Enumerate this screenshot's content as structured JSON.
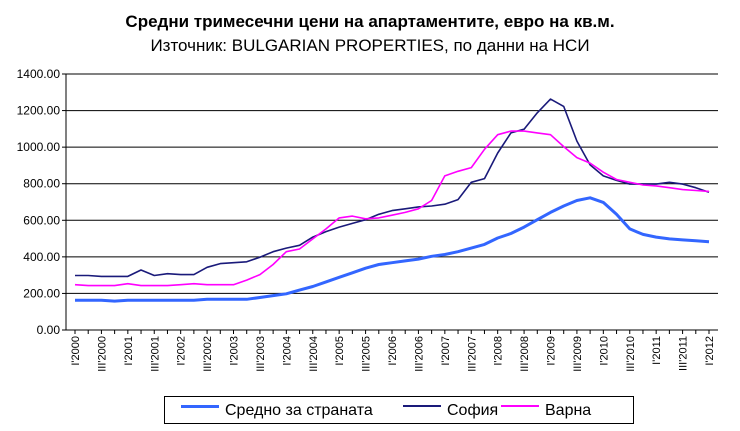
{
  "title": "Средни тримесечни цени на апартаментите, евро на кв.м.",
  "subtitle": "Източник: BULGARIAN PROPERTIES, по данни на НСИ",
  "chart_data": {
    "type": "line",
    "title": "Средни тримесечни цени на апартаментите, евро на кв.м.",
    "subtitle": "Източник: BULGARIAN PROPERTIES, по данни на НСИ",
    "ylim": [
      0,
      1400
    ],
    "yticks": [
      "0.00",
      "200.00",
      "400.00",
      "600.00",
      "800.00",
      "1000.00",
      "1200.00",
      "1400.00"
    ],
    "grid": true,
    "legend": "bottom",
    "x": [
      "I'2000",
      "II'2000",
      "III'2000",
      "IV'2000",
      "I'2001",
      "II'2001",
      "III'2001",
      "IV'2001",
      "I'2002",
      "II'2002",
      "III'2002",
      "IV'2002",
      "I'2003",
      "II'2003",
      "III'2003",
      "IV'2003",
      "I'2004",
      "II'2004",
      "III'2004",
      "IV'2004",
      "I'2005",
      "II'2005",
      "III'2005",
      "IV'2005",
      "I'2006",
      "II'2006",
      "III'2006",
      "IV'2006",
      "I'2007",
      "II'2007",
      "III'2007",
      "IV'2007",
      "I'2008",
      "II'2008",
      "III'2008",
      "IV'2008",
      "I'2009",
      "II'2009",
      "III'2009",
      "IV'2009",
      "I'2010",
      "II'2010",
      "III'2010",
      "IV'2010",
      "I'2011",
      "II'2011",
      "III'2011",
      "IV'2011",
      "I'2012"
    ],
    "xtick_labels": [
      "I'2000",
      "III'2000",
      "I'2001",
      "III'2001",
      "I'2002",
      "III'2002",
      "I'2003",
      "III'2003",
      "I'2004",
      "III'2004",
      "I'2005",
      "III'2005",
      "I'2006",
      "III'2006",
      "I'2007",
      "III'2007",
      "I'2008",
      "III'2008",
      "I'2009",
      "III'2009",
      "I'2010",
      "III'2010",
      "I'2011",
      "III'2011",
      "I'2012"
    ],
    "series": [
      {
        "name": "Средно за страната",
        "color": "#3366ff",
        "width": 3,
        "values": [
          163,
          163,
          163,
          158,
          163,
          163,
          163,
          163,
          163,
          163,
          168,
          168,
          168,
          168,
          178,
          188,
          198,
          218,
          238,
          263,
          288,
          313,
          338,
          358,
          368,
          378,
          388,
          403,
          413,
          428,
          448,
          468,
          503,
          528,
          563,
          603,
          643,
          678,
          708,
          723,
          698,
          633,
          553,
          523,
          508,
          498,
          493,
          488,
          483
        ]
      },
      {
        "name": "София",
        "color": "#1a1a7a",
        "width": 1.6,
        "values": [
          298,
          298,
          293,
          293,
          293,
          328,
          298,
          308,
          303,
          303,
          343,
          363,
          368,
          373,
          398,
          428,
          448,
          463,
          508,
          538,
          563,
          583,
          603,
          633,
          653,
          663,
          673,
          678,
          688,
          713,
          808,
          828,
          968,
          1078,
          1098,
          1188,
          1263,
          1223,
          1033,
          903,
          843,
          818,
          798,
          798,
          798,
          808,
          798,
          778,
          753
        ]
      },
      {
        "name": "Варна",
        "color": "#ff00ff",
        "width": 1.6,
        "values": [
          248,
          243,
          243,
          243,
          253,
          243,
          243,
          243,
          248,
          253,
          248,
          248,
          248,
          273,
          303,
          358,
          428,
          443,
          498,
          553,
          613,
          623,
          608,
          613,
          628,
          643,
          663,
          708,
          843,
          868,
          888,
          988,
          1068,
          1088,
          1088,
          1078,
          1068,
          1003,
          943,
          913,
          863,
          823,
          808,
          793,
          788,
          778,
          768,
          763,
          758
        ]
      }
    ]
  }
}
